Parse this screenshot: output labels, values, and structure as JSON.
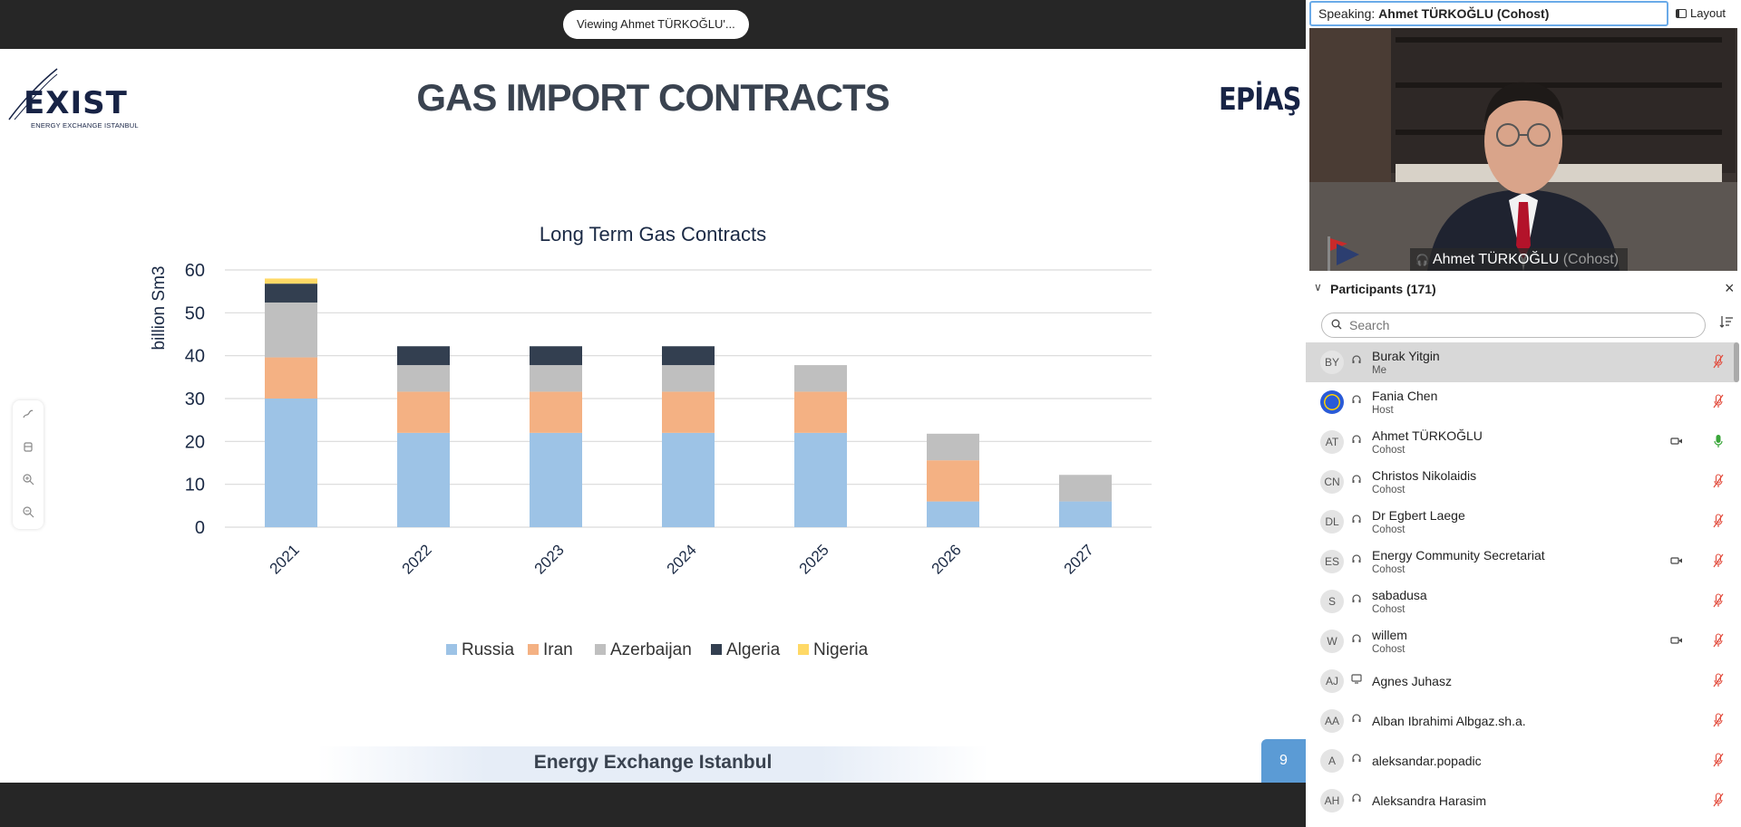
{
  "share": {
    "viewing_label": "Viewing Ahmet TÜRKOĞLU'..."
  },
  "slide": {
    "title": "GAS IMPORT CONTRACTS",
    "left_logo": {
      "word": "EXIST",
      "subtitle": "ENERGY EXCHANGE ISTANBUL"
    },
    "right_logo": "EPİAŞ",
    "footer": "Energy Exchange Istanbul",
    "page_number": "9",
    "tools": [
      "annotate-icon",
      "eraser-icon",
      "zoom-in-icon",
      "zoom-out-icon"
    ]
  },
  "chart_data": {
    "type": "bar",
    "stacked": true,
    "title": "Long Term Gas Contracts",
    "xlabel": "",
    "ylabel": "billion Sm3",
    "ylim": [
      0,
      60
    ],
    "yticks": [
      0,
      10,
      20,
      30,
      40,
      50,
      60
    ],
    "grid": true,
    "legend_position": "bottom",
    "categories": [
      "2021",
      "2022",
      "2023",
      "2024",
      "2025",
      "2026",
      "2027"
    ],
    "series": [
      {
        "name": "Russia",
        "color": "#9dc3e6",
        "values": [
          30,
          22,
          22,
          22,
          22,
          6,
          6
        ]
      },
      {
        "name": "Iran",
        "color": "#f4b183",
        "values": [
          9.6,
          9.6,
          9.6,
          9.6,
          9.6,
          9.6,
          0
        ]
      },
      {
        "name": "Azerbaijan",
        "color": "#bfbfbf",
        "values": [
          12.8,
          6.2,
          6.2,
          6.2,
          6.2,
          6.2,
          6.2
        ]
      },
      {
        "name": "Algeria",
        "color": "#333f50",
        "values": [
          4.4,
          4.4,
          4.4,
          4.4,
          0,
          0,
          0
        ]
      },
      {
        "name": "Nigeria",
        "color": "#ffd966",
        "values": [
          1.2,
          0,
          0,
          0,
          0,
          0,
          0
        ]
      }
    ]
  },
  "right_panel": {
    "speaking_prefix": "Speaking: ",
    "speaking_name": "Ahmet TÜRKOĞLU (Cohost)",
    "layout_label": "Layout",
    "video_name": "Ahmet TÜRKOĞLU",
    "video_role": "(Cohost)",
    "participants_title": "Participants (171)",
    "search_placeholder": "Search",
    "participants": [
      {
        "initials": "BY",
        "name": "Burak Yitgin",
        "role": "Me",
        "audio": "headset",
        "camera": false,
        "mic": "muted",
        "selected": true
      },
      {
        "initials": "",
        "name": "Fania Chen",
        "role": "Host",
        "audio": "headset",
        "camera": false,
        "mic": "muted",
        "avatar_image": true
      },
      {
        "initials": "AT",
        "name": "Ahmet TÜRKOĞLU",
        "role": "Cohost",
        "audio": "headset",
        "camera": true,
        "mic": "on"
      },
      {
        "initials": "CN",
        "name": "Christos Nikolaidis",
        "role": "Cohost",
        "audio": "headset",
        "camera": false,
        "mic": "muted"
      },
      {
        "initials": "DL",
        "name": "Dr Egbert Laege",
        "role": "Cohost",
        "audio": "headset",
        "camera": false,
        "mic": "muted"
      },
      {
        "initials": "ES",
        "name": "Energy Community Secretariat",
        "role": "Cohost",
        "audio": "headset",
        "camera": true,
        "mic": "muted"
      },
      {
        "initials": "S",
        "name": "sabadusa",
        "role": "Cohost",
        "audio": "headset",
        "camera": false,
        "mic": "muted"
      },
      {
        "initials": "W",
        "name": "willem",
        "role": "Cohost",
        "audio": "headset",
        "camera": true,
        "mic": "muted"
      },
      {
        "initials": "AJ",
        "name": "Agnes Juhasz",
        "role": "",
        "audio": "screen",
        "camera": false,
        "mic": "muted"
      },
      {
        "initials": "AA",
        "name": "Alban Ibrahimi Albgaz.sh.a.",
        "role": "",
        "audio": "headset",
        "camera": false,
        "mic": "muted"
      },
      {
        "initials": "A",
        "name": "aleksandar.popadic",
        "role": "",
        "audio": "headset",
        "camera": false,
        "mic": "muted"
      },
      {
        "initials": "AH",
        "name": "Aleksandra Harasim",
        "role": "",
        "audio": "headset",
        "camera": false,
        "mic": "muted"
      }
    ]
  }
}
